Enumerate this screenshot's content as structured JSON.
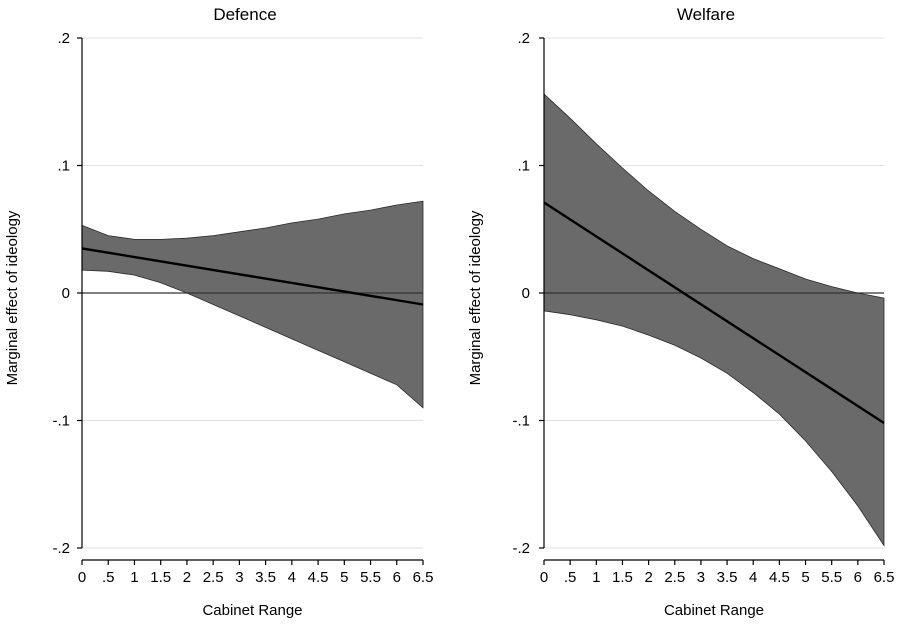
{
  "chart_data": [
    {
      "type": "line",
      "title": "Defence",
      "xlabel": "Cabinet Range",
      "ylabel": "Marginal effect of ideology",
      "xlim": [
        0,
        6.5
      ],
      "ylim": [
        -0.2,
        0.2
      ],
      "x_ticks": [
        "0",
        ".5",
        "1",
        "1.5",
        "2",
        "2.5",
        "3",
        "3.5",
        "4",
        "4.5",
        "5",
        "5.5",
        "6",
        "6.5"
      ],
      "y_ticks": [
        ".2",
        ".1",
        "0",
        "-.1",
        "-.2"
      ],
      "grid": true,
      "reference_line": 0,
      "series": [
        {
          "name": "marginal effect",
          "x": [
            0,
            6.5
          ],
          "values": [
            0.035,
            -0.009
          ]
        }
      ],
      "confidence_band": {
        "x": [
          0,
          0.5,
          1,
          1.5,
          2,
          2.5,
          3,
          3.5,
          4,
          4.5,
          5,
          5.5,
          6,
          6.5
        ],
        "upper": [
          0.053,
          0.045,
          0.042,
          0.042,
          0.043,
          0.045,
          0.048,
          0.051,
          0.055,
          0.058,
          0.062,
          0.065,
          0.069,
          0.072
        ],
        "lower": [
          0.018,
          0.017,
          0.014,
          0.008,
          0.0,
          -0.009,
          -0.018,
          -0.027,
          -0.036,
          -0.045,
          -0.054,
          -0.063,
          -0.072,
          -0.09
        ]
      }
    },
    {
      "type": "line",
      "title": "Welfare",
      "xlabel": "Cabinet Range",
      "ylabel": "Marginal effect of ideology",
      "xlim": [
        0,
        6.5
      ],
      "ylim": [
        -0.2,
        0.2
      ],
      "x_ticks": [
        "0",
        ".5",
        "1",
        "1.5",
        "2",
        "2.5",
        "3",
        "3.5",
        "4",
        "4.5",
        "5",
        "5.5",
        "6",
        "6.5"
      ],
      "y_ticks": [
        ".2",
        ".1",
        "0",
        "-.1",
        "-.2"
      ],
      "grid": true,
      "reference_line": 0,
      "series": [
        {
          "name": "marginal effect",
          "x": [
            0,
            6.5
          ],
          "values": [
            0.071,
            -0.102
          ]
        }
      ],
      "confidence_band": {
        "x": [
          0,
          0.5,
          1,
          1.5,
          2,
          2.5,
          3,
          3.5,
          4,
          4.5,
          5,
          5.5,
          6,
          6.5
        ],
        "upper": [
          0.156,
          0.137,
          0.117,
          0.098,
          0.08,
          0.064,
          0.05,
          0.037,
          0.027,
          0.019,
          0.011,
          0.005,
          0.0,
          -0.004
        ],
        "lower": [
          -0.014,
          -0.017,
          -0.021,
          -0.026,
          -0.033,
          -0.041,
          -0.051,
          -0.063,
          -0.078,
          -0.095,
          -0.116,
          -0.14,
          -0.167,
          -0.198
        ]
      }
    }
  ],
  "colors": {
    "band_fill": "#6a6a6a",
    "band_edge": "#2a2a2a",
    "line": "#000000",
    "grid": "#e2e2e2",
    "axis": "#000000"
  }
}
